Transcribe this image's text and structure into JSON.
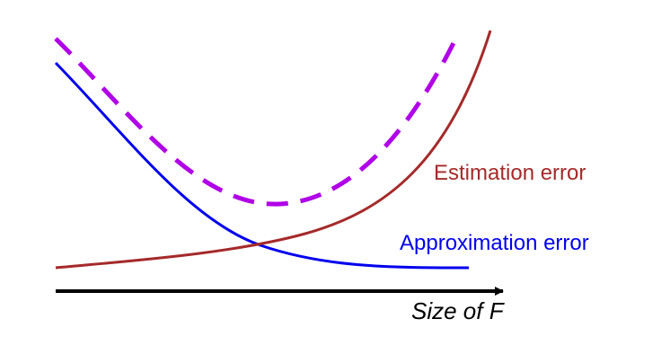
{
  "diagram": {
    "labels": {
      "estimation": "Estimation error",
      "approximation": "Approximation error",
      "axis": "Size of F"
    },
    "colors": {
      "estimation": "#a52a2a",
      "approximation": "#0000ee",
      "total": "#b000e8",
      "axis": "#000000"
    }
  }
}
